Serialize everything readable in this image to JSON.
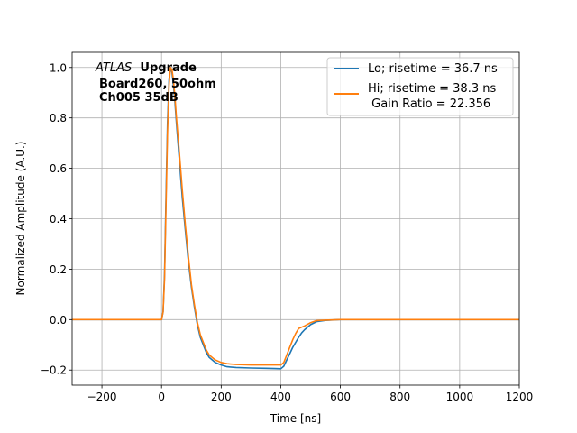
{
  "chart_data": {
    "type": "line",
    "xlabel": "Time [ns]",
    "ylabel": "Normalized Amplitude (A.U.)",
    "xlim": [
      -300,
      1200
    ],
    "ylim": [
      -0.26,
      1.06
    ],
    "x_ticks": [
      -200,
      0,
      200,
      400,
      600,
      800,
      1000,
      1200
    ],
    "x_tick_labels": [
      "−200",
      "0",
      "200",
      "400",
      "600",
      "800",
      "1000",
      "1200"
    ],
    "y_ticks": [
      -0.2,
      0.0,
      0.2,
      0.4,
      0.6,
      0.8,
      1.0
    ],
    "y_tick_labels": [
      "−0.2",
      "0.0",
      "0.2",
      "0.4",
      "0.6",
      "0.8",
      "1.0"
    ],
    "grid": true,
    "legend_position": "top-right",
    "annotation": {
      "lines": [
        {
          "italic": "ATLAS",
          "bold": "Upgrade"
        },
        {
          "italic": "",
          "bold": "Board260, 50ohm"
        },
        {
          "italic": "",
          "bold": "Ch005 35dB"
        }
      ]
    },
    "legend": [
      {
        "label": "Lo; risetime = 36.7 ns",
        "color": "#1f77b4"
      },
      {
        "label": "Hi; risetime = 38.3 ns",
        "label2": " Gain Ratio = 22.356",
        "color": "#ff7f0e"
      }
    ],
    "series": [
      {
        "name": "Lo; risetime = 36.7 ns",
        "color": "#1f77b4",
        "x": [
          -300,
          -100,
          0,
          5,
          10,
          15,
          20,
          25,
          30,
          35,
          40,
          45,
          50,
          60,
          70,
          80,
          90,
          100,
          110,
          120,
          130,
          140,
          150,
          160,
          170,
          180,
          200,
          220,
          250,
          300,
          350,
          380,
          400,
          410,
          420,
          430,
          440,
          450,
          460,
          470,
          480,
          500,
          520,
          550,
          600,
          700,
          800,
          900,
          1000,
          1100,
          1200
        ],
        "y": [
          0.0,
          0.0,
          0.0,
          0.03,
          0.18,
          0.5,
          0.78,
          0.95,
          1.0,
          0.98,
          0.93,
          0.86,
          0.78,
          0.63,
          0.48,
          0.35,
          0.23,
          0.13,
          0.05,
          -0.02,
          -0.07,
          -0.1,
          -0.13,
          -0.15,
          -0.16,
          -0.17,
          -0.18,
          -0.187,
          -0.19,
          -0.192,
          -0.193,
          -0.194,
          -0.195,
          -0.185,
          -0.16,
          -0.135,
          -0.11,
          -0.09,
          -0.07,
          -0.053,
          -0.04,
          -0.02,
          -0.008,
          -0.003,
          0.0,
          0.0,
          0.0,
          0.0,
          0.0,
          0.0,
          0.0
        ]
      },
      {
        "name": "Hi; risetime = 38.3 ns",
        "color": "#ff7f0e",
        "x": [
          -300,
          -100,
          0,
          5,
          10,
          15,
          20,
          25,
          30,
          35,
          40,
          45,
          50,
          60,
          70,
          80,
          90,
          100,
          110,
          120,
          130,
          140,
          150,
          160,
          170,
          180,
          200,
          220,
          250,
          300,
          350,
          380,
          400,
          410,
          420,
          430,
          440,
          450,
          460,
          470,
          480,
          500,
          520,
          550,
          600,
          700,
          800,
          900,
          1000,
          1100,
          1200
        ],
        "y": [
          0.0,
          0.0,
          0.0,
          0.03,
          0.16,
          0.46,
          0.74,
          0.93,
          1.0,
          0.99,
          0.95,
          0.88,
          0.8,
          0.66,
          0.51,
          0.37,
          0.25,
          0.14,
          0.06,
          -0.01,
          -0.06,
          -0.09,
          -0.12,
          -0.14,
          -0.15,
          -0.16,
          -0.17,
          -0.175,
          -0.178,
          -0.18,
          -0.18,
          -0.18,
          -0.18,
          -0.17,
          -0.14,
          -0.11,
          -0.08,
          -0.055,
          -0.035,
          -0.03,
          -0.025,
          -0.012,
          -0.004,
          -0.002,
          0.0,
          0.0,
          0.0,
          0.0,
          0.0,
          0.0,
          0.0
        ]
      }
    ]
  }
}
